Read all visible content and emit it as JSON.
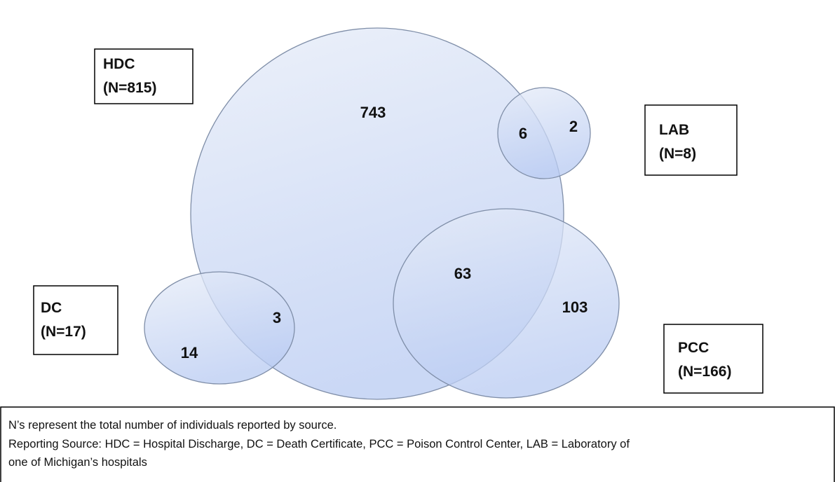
{
  "sets": [
    {
      "name": "HDC",
      "n": "(N=815)"
    },
    {
      "name": "LAB",
      "n": "(N=8)"
    },
    {
      "name": "DC",
      "n": "(N=17)"
    },
    {
      "name": "PCC",
      "n": "(N=166)"
    }
  ],
  "regions": [
    743,
    6,
    2,
    63,
    103,
    3,
    14
  ],
  "note": {
    "lines": [
      "N’s represent the total number of individuals reported by source.",
      "Reporting Source: HDC = Hospital Discharge, DC = Death Certificate, PCC = Poison Control Center, LAB = Laboratory of",
      "one of Michigan’s hospitals"
    ]
  }
}
